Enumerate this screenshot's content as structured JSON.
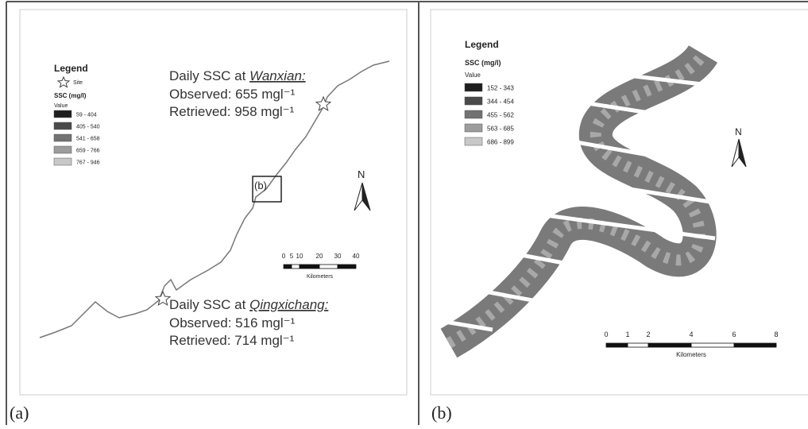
{
  "panels": [
    {
      "label": "(a)",
      "legend": {
        "title": "Legend",
        "site": "Site",
        "ssc": "SSC (mg/l)",
        "value": "Value",
        "classes": [
          "59 - 404",
          "405 - 540",
          "541 - 658",
          "659 - 766",
          "767 - 946"
        ]
      },
      "annotations": [
        {
          "prefix": "Daily SSC at ",
          "place": "Wanxian:",
          "observed": "Observed: 655 mgl⁻¹",
          "retrieved": "Retrieved: 958 mgl⁻¹"
        },
        {
          "prefix": "Daily SSC at ",
          "place": "Qingxichang:",
          "observed": "Observed: 516 mgl⁻¹",
          "retrieved": "Retrieved: 714 mgl⁻¹"
        }
      ],
      "inset": "(b)",
      "north": "N",
      "scale": {
        "ticks": [
          "0",
          "5",
          "10",
          "20",
          "30",
          "40"
        ],
        "unit": "Kilometers"
      }
    },
    {
      "label": "(b)",
      "legend": {
        "title": "Legend",
        "ssc": "SSC (mg/l)",
        "value": "Value",
        "classes": [
          "152 - 343",
          "344 - 454",
          "455 - 562",
          "563 - 685",
          "686 - 899"
        ]
      },
      "north": "N",
      "scale": {
        "ticks": [
          "0",
          "1",
          "2",
          "4",
          "6",
          "8"
        ],
        "unit": "Kilometers"
      }
    }
  ]
}
